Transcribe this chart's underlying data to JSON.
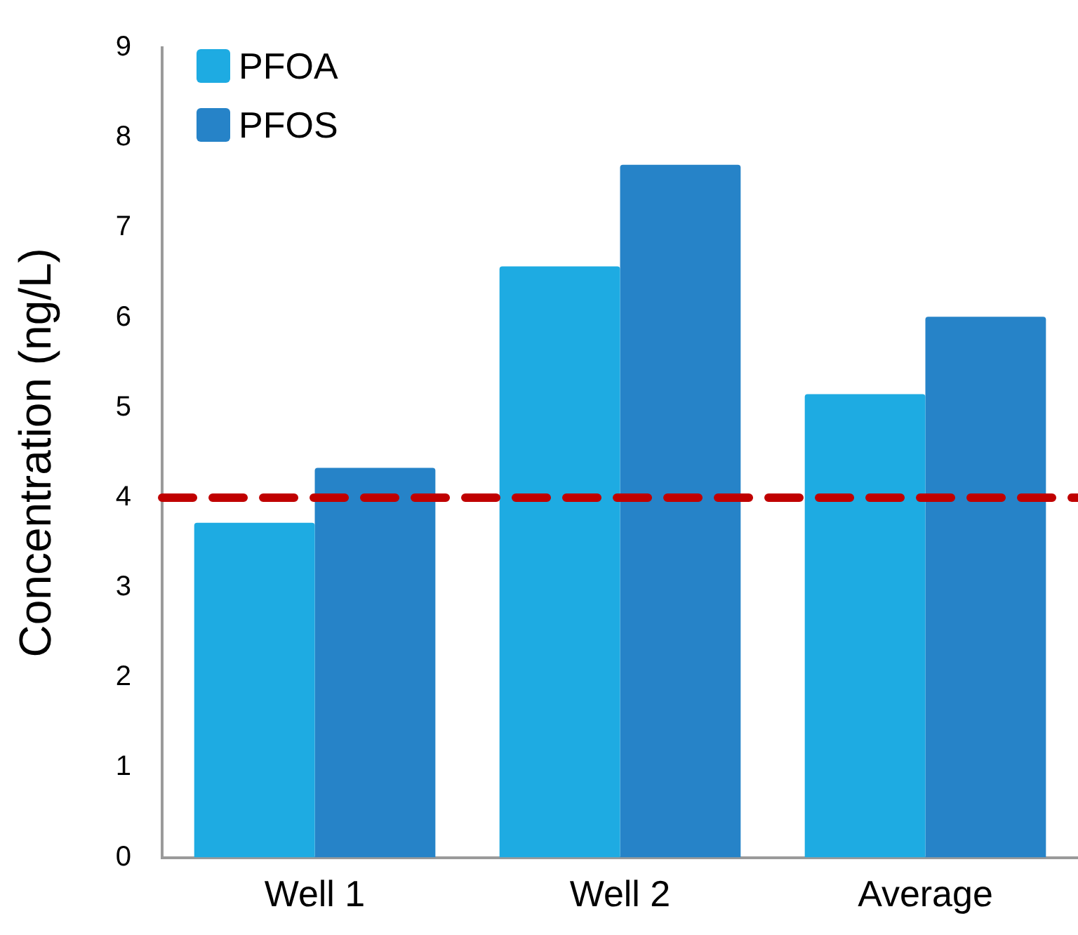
{
  "chart_data": {
    "type": "bar",
    "ylabel": "Concentration (ng/L)",
    "categories": [
      "Well 1",
      "Well 2",
      "Average"
    ],
    "series": [
      {
        "name": "PFOA",
        "color": "#1eabe2",
        "values": [
          3.72,
          6.57,
          5.15
        ]
      },
      {
        "name": "PFOS",
        "color": "#2683c8",
        "values": [
          4.33,
          7.7,
          6.01
        ]
      }
    ],
    "ylim": [
      0,
      9
    ],
    "yticks": [
      0,
      1,
      2,
      3,
      4,
      5,
      6,
      7,
      8,
      9
    ],
    "grid": false,
    "legend": "top left",
    "ref_lines": [
      {
        "axis": "y",
        "value": 4,
        "color": "#c00000",
        "line_style": "dashed"
      }
    ]
  }
}
